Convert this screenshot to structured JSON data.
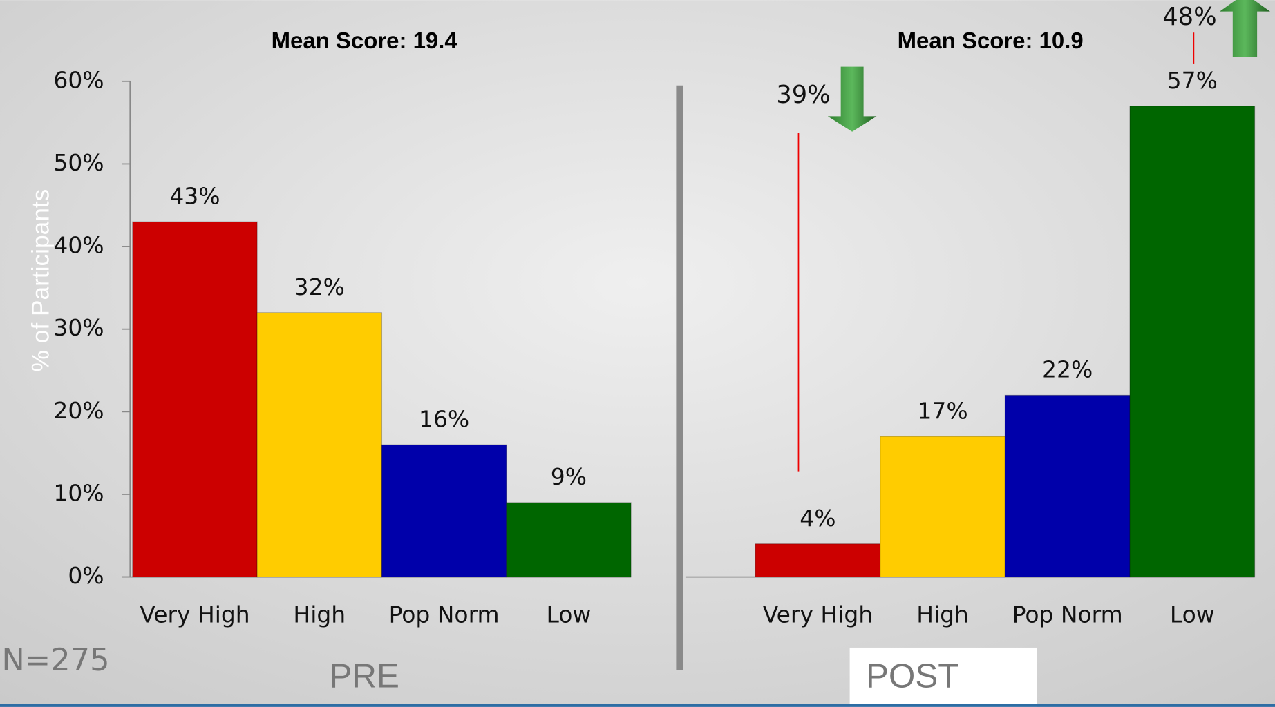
{
  "chart_data": [
    {
      "type": "bar",
      "title": "Mean Score: 19.4",
      "y_label": "% of Participants",
      "categories": [
        "Very High",
        "High",
        "Pop Norm",
        "Low"
      ],
      "values": [
        43,
        32,
        16,
        9
      ],
      "value_labels": [
        "43%",
        "32%",
        "16%",
        "9%"
      ],
      "colors": [
        "#cc0000",
        "#ffcc00",
        "#0000aa",
        "#006600"
      ],
      "ylim": [
        0,
        60
      ],
      "yticks": [
        {
          "value": 0,
          "label": "0%"
        },
        {
          "value": 10,
          "label": "10%"
        },
        {
          "value": 20,
          "label": "20%"
        },
        {
          "value": 30,
          "label": "30%"
        },
        {
          "value": 40,
          "label": "40%"
        },
        {
          "value": 50,
          "label": "50%"
        },
        {
          "value": 60,
          "label": "60%"
        }
      ],
      "caption": "PRE"
    },
    {
      "type": "bar",
      "title": "Mean Score: 10.9",
      "categories": [
        "Very High",
        "High",
        "Pop Norm",
        "Low"
      ],
      "values": [
        4,
        17,
        22,
        57
      ],
      "value_labels": [
        "4%",
        "17%",
        "22%",
        "57%"
      ],
      "colors": [
        "#cc0000",
        "#ffcc00",
        "#0000aa",
        "#006600"
      ],
      "ylim": [
        0,
        60
      ],
      "caption": "POST"
    }
  ],
  "annotations": [
    "39%",
    "48%"
  ],
  "sample_size": "N=275"
}
